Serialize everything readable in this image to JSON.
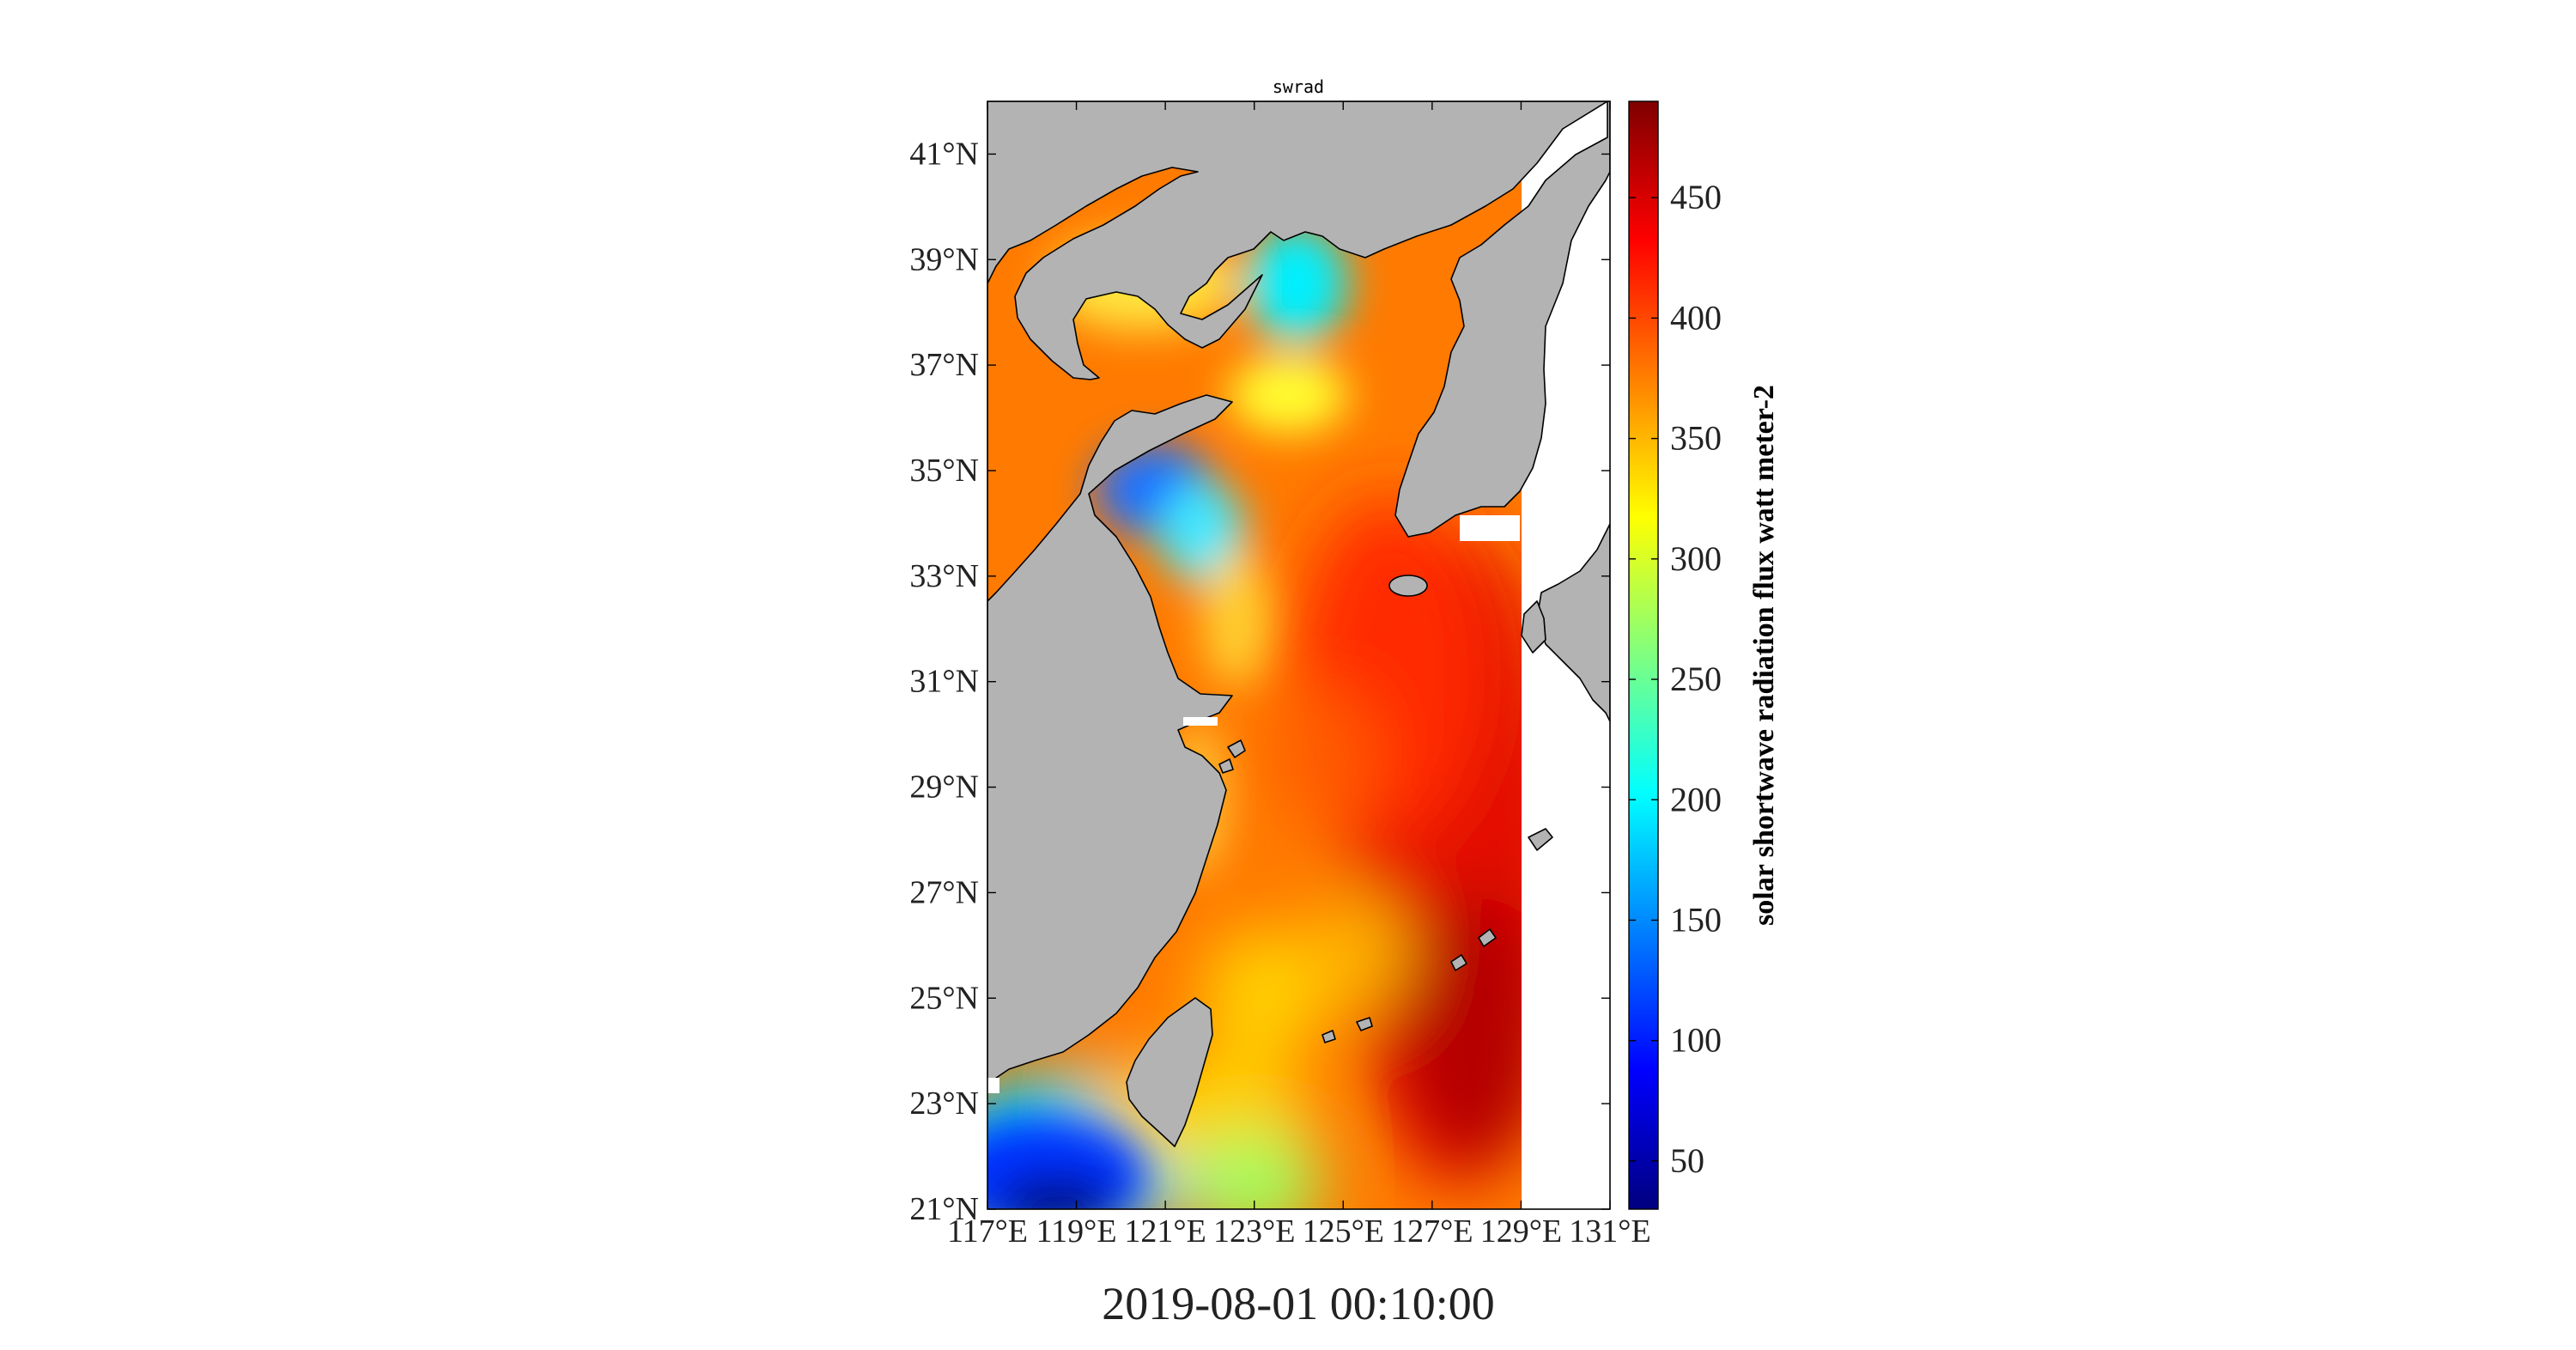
{
  "figure": {
    "title": "swrad",
    "timestamp": "2019-08-01 00:10:00"
  },
  "map": {
    "variable": "swrad",
    "lon_range": [
      117,
      131
    ],
    "lat_range": [
      21,
      42
    ],
    "x_ticks": [
      {
        "value": 117,
        "label": "117°E"
      },
      {
        "value": 119,
        "label": "119°E"
      },
      {
        "value": 121,
        "label": "121°E"
      },
      {
        "value": 123,
        "label": "123°E"
      },
      {
        "value": 125,
        "label": "125°E"
      },
      {
        "value": 127,
        "label": "127°E"
      },
      {
        "value": 129,
        "label": "129°E"
      },
      {
        "value": 131,
        "label": "131°E"
      }
    ],
    "y_ticks": [
      {
        "value": 21,
        "label": "21°N"
      },
      {
        "value": 23,
        "label": "23°N"
      },
      {
        "value": 25,
        "label": "25°N"
      },
      {
        "value": 27,
        "label": "27°N"
      },
      {
        "value": 29,
        "label": "29°N"
      },
      {
        "value": 31,
        "label": "31°N"
      },
      {
        "value": 33,
        "label": "33°N"
      },
      {
        "value": 35,
        "label": "35°N"
      },
      {
        "value": 37,
        "label": "37°N"
      },
      {
        "value": 39,
        "label": "39°N"
      },
      {
        "value": 41,
        "label": "41°N"
      }
    ],
    "land_color": "#b3b3b3",
    "ocean_nodata_color": "#ffffff",
    "data_east_edge_lon": 129.4
  },
  "colorbar": {
    "label": "solar shortwave radiation flux watt meter-2",
    "range": [
      30,
      490
    ],
    "ticks": [
      {
        "value": 50,
        "label": "50"
      },
      {
        "value": 100,
        "label": "100"
      },
      {
        "value": 150,
        "label": "150"
      },
      {
        "value": 200,
        "label": "200"
      },
      {
        "value": 250,
        "label": "250"
      },
      {
        "value": 300,
        "label": "300"
      },
      {
        "value": 350,
        "label": "350"
      },
      {
        "value": 400,
        "label": "400"
      },
      {
        "value": 450,
        "label": "450"
      }
    ],
    "colormap": "jet",
    "colors": [
      "#00007f",
      "#0000ff",
      "#007fff",
      "#00ffff",
      "#7fff7f",
      "#ffff00",
      "#ff7f00",
      "#ff0000",
      "#7f0000"
    ]
  }
}
